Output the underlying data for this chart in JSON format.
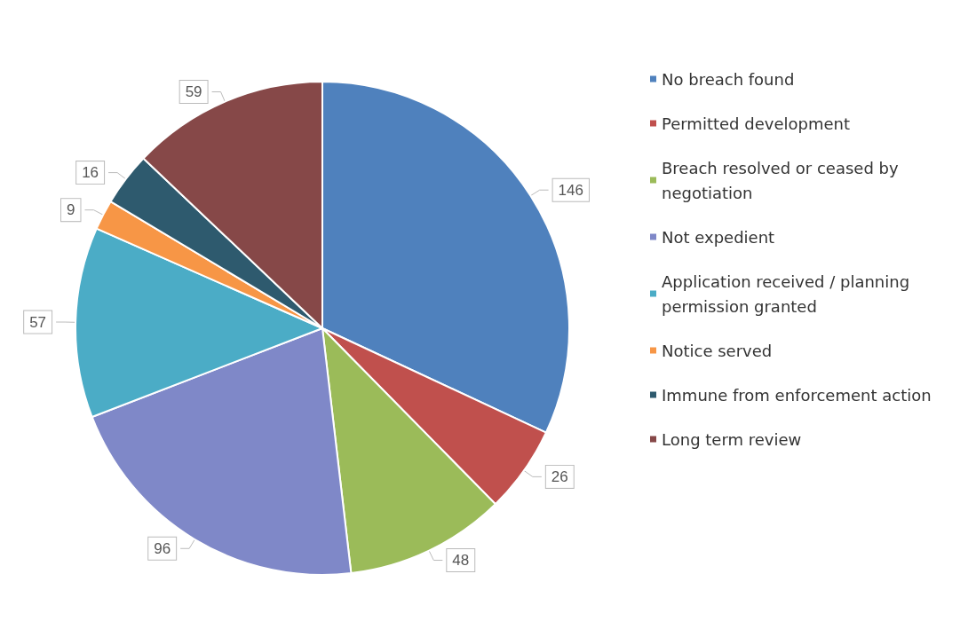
{
  "chart_data": {
    "type": "pie",
    "categories": [
      "No breach found",
      "Permitted development",
      "Breach resolved or ceased by negotiation",
      "Not expedient",
      "Application received / planning permission granted",
      "Notice served",
      "Immune from enforcement action",
      "Long term review"
    ],
    "values": [
      146,
      26,
      48,
      96,
      57,
      9,
      16,
      59
    ],
    "colors": [
      "#4f81bd",
      "#c0504d",
      "#9bbb59",
      "#7f88c8",
      "#4bacc6",
      "#f79646",
      "#2e5a6e",
      "#864848"
    ],
    "data_labels": true,
    "legend": "right"
  }
}
